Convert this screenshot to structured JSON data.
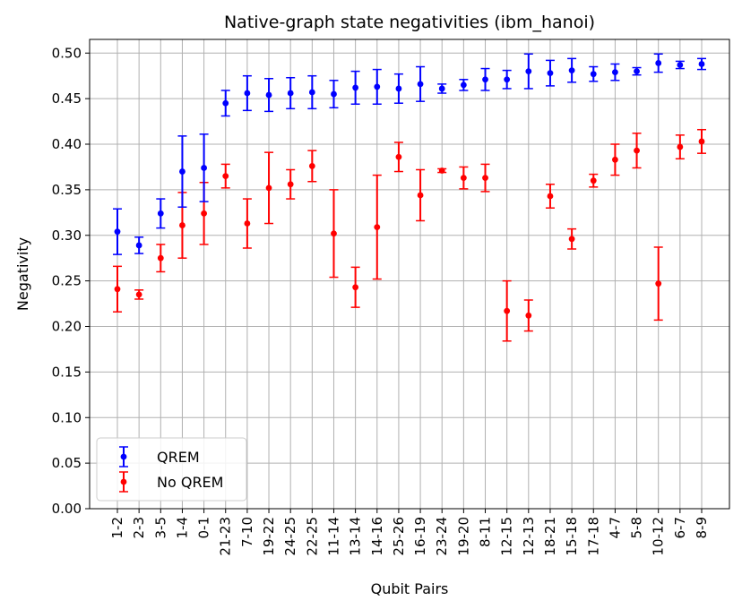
{
  "chart_data": {
    "type": "scatter",
    "title": "Native-graph state negativities (ibm_hanoi)",
    "xlabel": "Qubit Pairs",
    "ylabel": "Negativity",
    "ylim": [
      0.0,
      0.515
    ],
    "yticks": [
      "0.00",
      "0.05",
      "0.10",
      "0.15",
      "0.20",
      "0.25",
      "0.30",
      "0.35",
      "0.40",
      "0.45",
      "0.50"
    ],
    "categories": [
      "1-2",
      "2-3",
      "3-5",
      "1-4",
      "0-1",
      "21-23",
      "7-10",
      "19-22",
      "24-25",
      "22-25",
      "11-14",
      "13-14",
      "14-16",
      "25-26",
      "16-19",
      "23-24",
      "19-20",
      "8-11",
      "12-15",
      "12-13",
      "18-21",
      "15-18",
      "17-18",
      "4-7",
      "5-8",
      "10-12",
      "6-7",
      "8-9"
    ],
    "grid": true,
    "legend_position": "lower-left",
    "series": [
      {
        "name": "QREM",
        "color": "#0000ff",
        "values": [
          0.304,
          0.289,
          0.324,
          0.37,
          0.374,
          0.445,
          0.456,
          0.454,
          0.456,
          0.457,
          0.455,
          0.462,
          0.463,
          0.461,
          0.466,
          0.461,
          0.465,
          0.471,
          0.471,
          0.48,
          0.478,
          0.481,
          0.477,
          0.479,
          0.48,
          0.489,
          0.487,
          0.488
        ],
        "err": [
          0.025,
          0.009,
          0.016,
          0.039,
          0.037,
          0.014,
          0.019,
          0.018,
          0.017,
          0.018,
          0.015,
          0.018,
          0.019,
          0.016,
          0.019,
          0.005,
          0.006,
          0.012,
          0.01,
          0.019,
          0.014,
          0.013,
          0.008,
          0.009,
          0.004,
          0.01,
          0.004,
          0.006
        ]
      },
      {
        "name": "No QREM",
        "color": "#ff0000",
        "values": [
          0.241,
          0.235,
          0.275,
          0.311,
          0.324,
          0.365,
          0.313,
          0.352,
          0.356,
          0.376,
          0.302,
          0.243,
          0.309,
          0.386,
          0.344,
          0.371,
          0.363,
          0.363,
          0.217,
          0.212,
          0.343,
          0.296,
          0.36,
          0.383,
          0.393,
          0.247,
          0.397,
          0.403
        ],
        "err": [
          0.025,
          0.005,
          0.015,
          0.036,
          0.034,
          0.013,
          0.027,
          0.039,
          0.016,
          0.017,
          0.048,
          0.022,
          0.057,
          0.016,
          0.028,
          0.002,
          0.012,
          0.015,
          0.033,
          0.017,
          0.013,
          0.011,
          0.007,
          0.017,
          0.019,
          0.04,
          0.013,
          0.013
        ]
      }
    ]
  }
}
